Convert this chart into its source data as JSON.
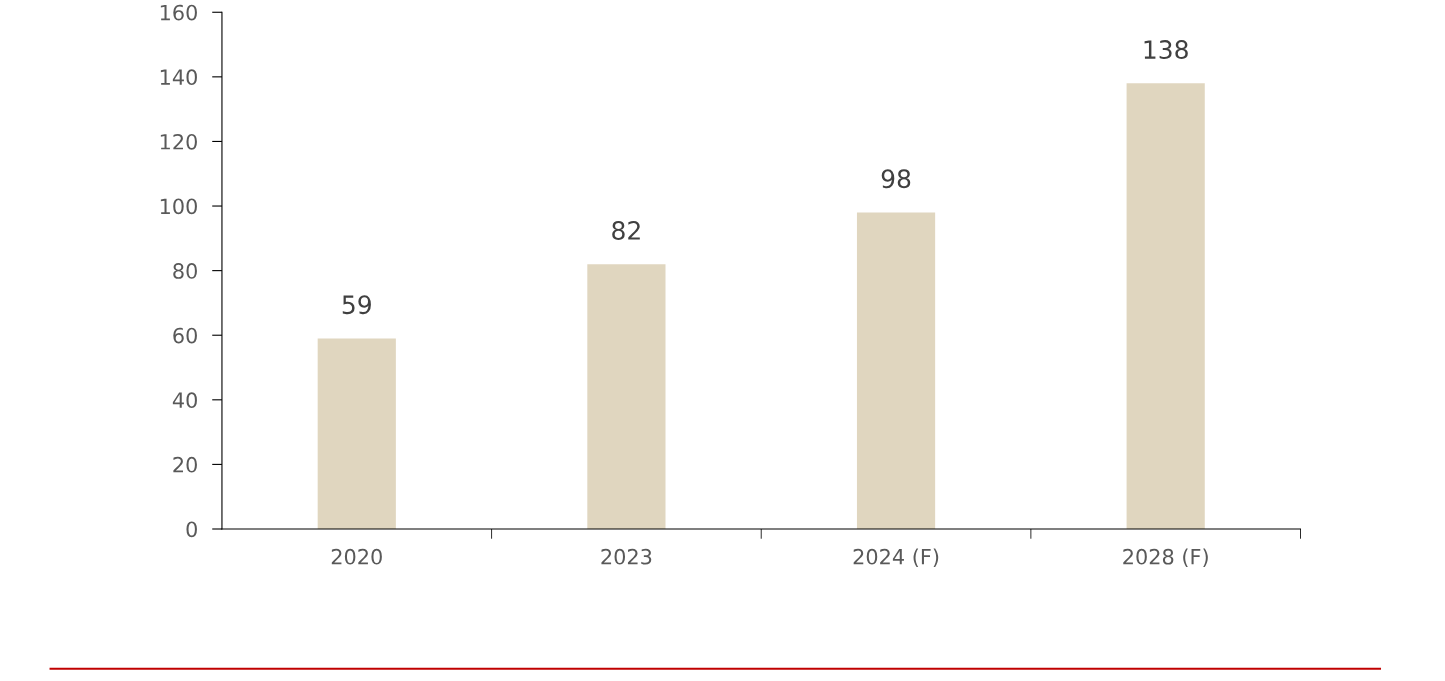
{
  "chart_data": {
    "type": "bar",
    "categories": [
      "2020",
      "2023",
      "2024 (F)",
      "2028 (F)"
    ],
    "values": [
      59,
      82,
      98,
      138
    ],
    "color": "#e0d6bf",
    "ylim": [
      0,
      160
    ],
    "yticks": [
      0,
      20,
      40,
      60,
      80,
      100,
      120,
      140,
      160
    ],
    "data_labels": true,
    "grid": false,
    "legend": false
  }
}
